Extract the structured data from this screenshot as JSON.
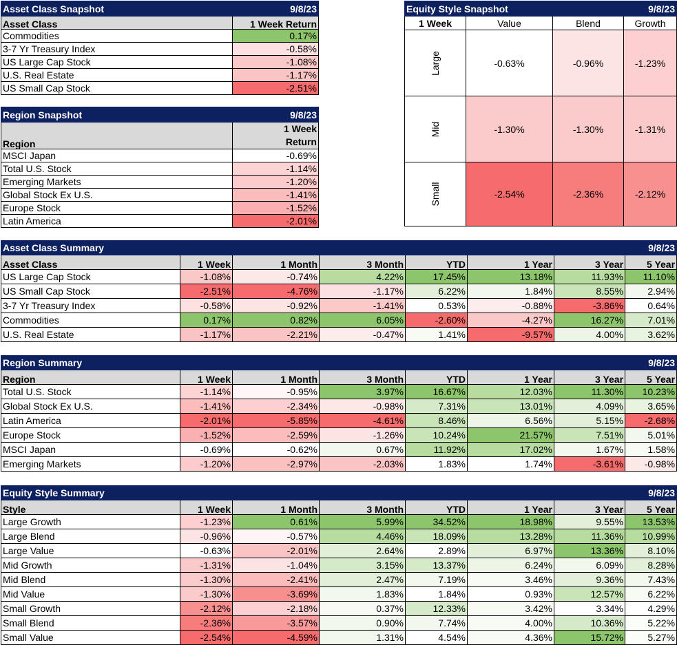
{
  "asset_snapshot": {
    "title": "Asset Class Snapshot",
    "date": "9/8/23",
    "col_label": "Asset Class",
    "col_value": "1 Week Return",
    "rows": [
      {
        "name": "Commodities",
        "value": "0.17%",
        "color": "#8cc56b"
      },
      {
        "name": "3-7 Yr Treasury Index",
        "value": "-0.58%",
        "color": "#fde0e0"
      },
      {
        "name": "US Large Cap Stock",
        "value": "-1.08%",
        "color": "#fbc8c8"
      },
      {
        "name": "U.S. Real Estate",
        "value": "-1.17%",
        "color": "#fbc4c4"
      },
      {
        "name": "US Small Cap Stock",
        "value": "-2.51%",
        "color": "#f66b6b"
      }
    ]
  },
  "region_snapshot": {
    "title": "Region Snapshot",
    "date": "9/8/23",
    "col_label": "Region",
    "col_value_1": "1 Week",
    "col_value_2": "Return",
    "rows": [
      {
        "name": "MSCI Japan",
        "value": "-0.69%",
        "color": "#ffffff"
      },
      {
        "name": "Total U.S. Stock",
        "value": "-1.14%",
        "color": "#fcd4d4"
      },
      {
        "name": "Emerging Markets",
        "value": "-1.20%",
        "color": "#fccccc"
      },
      {
        "name": "Global Stock Ex U.S.",
        "value": "-1.41%",
        "color": "#fbbcbc"
      },
      {
        "name": "Europe Stock",
        "value": "-1.52%",
        "color": "#fab0b0"
      },
      {
        "name": "Latin America",
        "value": "-2.01%",
        "color": "#f66b6b"
      }
    ]
  },
  "equity_snapshot": {
    "title": "Equity Style Snapshot",
    "date": "9/8/23",
    "corner": "1 Week",
    "columns": [
      "Value",
      "Blend",
      "Growth"
    ],
    "rows": [
      {
        "label": "Large",
        "cells": [
          {
            "v": "-0.63%",
            "c": "#ffffff"
          },
          {
            "v": "-0.96%",
            "c": "#fde4e4"
          },
          {
            "v": "-1.23%",
            "c": "#fcd0d0"
          }
        ]
      },
      {
        "label": "Mid",
        "cells": [
          {
            "v": "-1.30%",
            "c": "#fbcaca"
          },
          {
            "v": "-1.30%",
            "c": "#fbcaca"
          },
          {
            "v": "-1.31%",
            "c": "#fbc9c9"
          }
        ]
      },
      {
        "label": "Small",
        "cells": [
          {
            "v": "-2.54%",
            "c": "#f66b6b"
          },
          {
            "v": "-2.36%",
            "c": "#f77d7d"
          },
          {
            "v": "-2.12%",
            "c": "#f89090"
          }
        ]
      }
    ]
  },
  "asset_summary": {
    "title": "Asset Class Summary",
    "date": "9/8/23",
    "columns": [
      "Asset Class",
      "1 Week",
      "1 Month",
      "3 Month",
      "YTD",
      "1 Year",
      "3 Year",
      "5 Year"
    ],
    "rows": [
      {
        "name": "US Large Cap Stock",
        "cells": [
          {
            "v": "-1.08%",
            "c": "#fbc8c8"
          },
          {
            "v": "-0.74%",
            "c": "#fde8e8"
          },
          {
            "v": "4.22%",
            "c": "#b6dca0"
          },
          {
            "v": "17.45%",
            "c": "#8cc56b"
          },
          {
            "v": "13.18%",
            "c": "#8cc56b"
          },
          {
            "v": "11.93%",
            "c": "#b6dca0"
          },
          {
            "v": "11.10%",
            "c": "#8cc56b"
          }
        ]
      },
      {
        "name": "US Small Cap Stock",
        "cells": [
          {
            "v": "-2.51%",
            "c": "#f66b6b"
          },
          {
            "v": "-4.76%",
            "c": "#f66b6b"
          },
          {
            "v": "-1.17%",
            "c": "#fde0e0"
          },
          {
            "v": "6.22%",
            "c": "#e2f0d9"
          },
          {
            "v": "1.84%",
            "c": "#f2f8ee"
          },
          {
            "v": "8.55%",
            "c": "#c9e5b8"
          },
          {
            "v": "2.94%",
            "c": "#f2f8ee"
          }
        ]
      },
      {
        "name": "3-7 Yr Treasury Index",
        "cells": [
          {
            "v": "-0.58%",
            "c": "#fde0e0"
          },
          {
            "v": "-0.92%",
            "c": "#fde4e4"
          },
          {
            "v": "-1.41%",
            "c": "#fcc8c8"
          },
          {
            "v": "0.53%",
            "c": "#ffffff"
          },
          {
            "v": "-0.88%",
            "c": "#fdecec"
          },
          {
            "v": "-3.86%",
            "c": "#f66b6b"
          },
          {
            "v": "0.64%",
            "c": "#ffffff"
          }
        ]
      },
      {
        "name": "Commodities",
        "cells": [
          {
            "v": "0.17%",
            "c": "#8cc56b"
          },
          {
            "v": "0.82%",
            "c": "#8cc56b"
          },
          {
            "v": "6.05%",
            "c": "#8cc56b"
          },
          {
            "v": "-2.60%",
            "c": "#f66b6b"
          },
          {
            "v": "-4.27%",
            "c": "#fbc8c8"
          },
          {
            "v": "16.27%",
            "c": "#8cc56b"
          },
          {
            "v": "7.01%",
            "c": "#d5eac8"
          }
        ]
      },
      {
        "name": "U.S. Real Estate",
        "cells": [
          {
            "v": "-1.17%",
            "c": "#fbc4c4"
          },
          {
            "v": "-2.21%",
            "c": "#fbc4c4"
          },
          {
            "v": "-0.47%",
            "c": "#fdecec"
          },
          {
            "v": "1.41%",
            "c": "#f7fbf4"
          },
          {
            "v": "-9.57%",
            "c": "#f66b6b"
          },
          {
            "v": "4.00%",
            "c": "#edf5e6"
          },
          {
            "v": "3.62%",
            "c": "#e8f3e0"
          }
        ]
      }
    ]
  },
  "region_summary": {
    "title": "Region Summary",
    "date": "9/8/23",
    "columns": [
      "Region",
      "1 Week",
      "1 Month",
      "3 Month",
      "YTD",
      "1 Year",
      "3 Year",
      "5 Year"
    ],
    "rows": [
      {
        "name": "Total U.S. Stock",
        "cells": [
          {
            "v": "-1.14%",
            "c": "#fcd4d4"
          },
          {
            "v": "-0.95%",
            "c": "#fef6f6"
          },
          {
            "v": "3.97%",
            "c": "#8cc56b"
          },
          {
            "v": "16.67%",
            "c": "#8cc56b"
          },
          {
            "v": "12.03%",
            "c": "#b6dca0"
          },
          {
            "v": "11.30%",
            "c": "#8cc56b"
          },
          {
            "v": "10.23%",
            "c": "#8cc56b"
          }
        ]
      },
      {
        "name": "Global Stock Ex U.S.",
        "cells": [
          {
            "v": "-1.41%",
            "c": "#fbbcbc"
          },
          {
            "v": "-2.34%",
            "c": "#fcd0d0"
          },
          {
            "v": "-0.98%",
            "c": "#fde8e8"
          },
          {
            "v": "7.31%",
            "c": "#d5eac8"
          },
          {
            "v": "13.01%",
            "c": "#c9e5b8"
          },
          {
            "v": "4.09%",
            "c": "#e2f0d9"
          },
          {
            "v": "3.65%",
            "c": "#e8f3e0"
          }
        ]
      },
      {
        "name": "Latin America",
        "cells": [
          {
            "v": "-2.01%",
            "c": "#f66b6b"
          },
          {
            "v": "-5.85%",
            "c": "#f66b6b"
          },
          {
            "v": "-4.61%",
            "c": "#f66b6b"
          },
          {
            "v": "8.46%",
            "c": "#c9e5b8"
          },
          {
            "v": "6.56%",
            "c": "#edf5e6"
          },
          {
            "v": "5.15%",
            "c": "#e2f0d9"
          },
          {
            "v": "-2.68%",
            "c": "#f66b6b"
          }
        ]
      },
      {
        "name": "Europe Stock",
        "cells": [
          {
            "v": "-1.52%",
            "c": "#fab0b0"
          },
          {
            "v": "-2.59%",
            "c": "#fbbcbc"
          },
          {
            "v": "-1.26%",
            "c": "#fde4e4"
          },
          {
            "v": "10.24%",
            "c": "#c9e5b8"
          },
          {
            "v": "21.57%",
            "c": "#8cc56b"
          },
          {
            "v": "7.51%",
            "c": "#c9e5b8"
          },
          {
            "v": "5.01%",
            "c": "#f2f8ee"
          }
        ]
      },
      {
        "name": "MSCI Japan",
        "cells": [
          {
            "v": "-0.69%",
            "c": "#ffffff"
          },
          {
            "v": "-0.62%",
            "c": "#ffffff"
          },
          {
            "v": "0.67%",
            "c": "#f2f8ee"
          },
          {
            "v": "11.92%",
            "c": "#b6dca0"
          },
          {
            "v": "17.02%",
            "c": "#b6dca0"
          },
          {
            "v": "1.67%",
            "c": "#f2f8ee"
          },
          {
            "v": "1.58%",
            "c": "#f7fbf4"
          }
        ]
      },
      {
        "name": "Emerging Markets",
        "cells": [
          {
            "v": "-1.20%",
            "c": "#fccccc"
          },
          {
            "v": "-2.97%",
            "c": "#fbc0c0"
          },
          {
            "v": "-2.03%",
            "c": "#fbc4c4"
          },
          {
            "v": "1.83%",
            "c": "#ffffff"
          },
          {
            "v": "1.74%",
            "c": "#ffffff"
          },
          {
            "v": "-3.61%",
            "c": "#f66b6b"
          },
          {
            "v": "-0.98%",
            "c": "#fde8e8"
          }
        ]
      }
    ]
  },
  "equity_summary": {
    "title": "Equity Style Summary",
    "date": "9/8/23",
    "columns": [
      "Style",
      "1 Week",
      "1 Month",
      "3 Month",
      "YTD",
      "1 Year",
      "3 Year",
      "5 Year"
    ],
    "rows": [
      {
        "name": "Large Growth",
        "cells": [
          {
            "v": "-1.23%",
            "c": "#fcd0d0"
          },
          {
            "v": "0.61%",
            "c": "#8cc56b"
          },
          {
            "v": "5.99%",
            "c": "#8cc56b"
          },
          {
            "v": "34.52%",
            "c": "#8cc56b"
          },
          {
            "v": "18.98%",
            "c": "#8cc56b"
          },
          {
            "v": "9.55%",
            "c": "#e2f0d9"
          },
          {
            "v": "13.53%",
            "c": "#8cc56b"
          }
        ]
      },
      {
        "name": "Large Blend",
        "cells": [
          {
            "v": "-0.96%",
            "c": "#fde4e4"
          },
          {
            "v": "-0.57%",
            "c": "#fef6f6"
          },
          {
            "v": "4.46%",
            "c": "#b6dca0"
          },
          {
            "v": "18.09%",
            "c": "#c9e5b8"
          },
          {
            "v": "13.28%",
            "c": "#b6dca0"
          },
          {
            "v": "11.36%",
            "c": "#b6dca0"
          },
          {
            "v": "10.99%",
            "c": "#b6dca0"
          }
        ]
      },
      {
        "name": "Large Value",
        "cells": [
          {
            "v": "-0.63%",
            "c": "#ffffff"
          },
          {
            "v": "-2.01%",
            "c": "#fbc4c4"
          },
          {
            "v": "2.64%",
            "c": "#e2f0d9"
          },
          {
            "v": "2.89%",
            "c": "#ffffff"
          },
          {
            "v": "6.97%",
            "c": "#e2f0d9"
          },
          {
            "v": "13.36%",
            "c": "#8cc56b"
          },
          {
            "v": "8.10%",
            "c": "#e2f0d9"
          }
        ]
      },
      {
        "name": "Mid Growth",
        "cells": [
          {
            "v": "-1.31%",
            "c": "#fbc9c9"
          },
          {
            "v": "-1.04%",
            "c": "#fde4e4"
          },
          {
            "v": "3.15%",
            "c": "#d5eac8"
          },
          {
            "v": "13.37%",
            "c": "#d5eac8"
          },
          {
            "v": "6.24%",
            "c": "#edf5e6"
          },
          {
            "v": "6.09%",
            "c": "#f2f8ee"
          },
          {
            "v": "8.28%",
            "c": "#e2f0d9"
          }
        ]
      },
      {
        "name": "Mid Blend",
        "cells": [
          {
            "v": "-1.30%",
            "c": "#fbcaca"
          },
          {
            "v": "-2.41%",
            "c": "#fbbcbc"
          },
          {
            "v": "2.47%",
            "c": "#e2f0d9"
          },
          {
            "v": "7.19%",
            "c": "#f2f8ee"
          },
          {
            "v": "3.46%",
            "c": "#f7fbf4"
          },
          {
            "v": "9.36%",
            "c": "#e2f0d9"
          },
          {
            "v": "7.43%",
            "c": "#f2f8ee"
          }
        ]
      },
      {
        "name": "Mid Value",
        "cells": [
          {
            "v": "-1.30%",
            "c": "#fbcaca"
          },
          {
            "v": "-3.69%",
            "c": "#f88f8f"
          },
          {
            "v": "1.83%",
            "c": "#f2f8ee"
          },
          {
            "v": "1.84%",
            "c": "#ffffff"
          },
          {
            "v": "0.93%",
            "c": "#ffffff"
          },
          {
            "v": "12.57%",
            "c": "#c9e5b8"
          },
          {
            "v": "6.22%",
            "c": "#f7fbf4"
          }
        ]
      },
      {
        "name": "Small Growth",
        "cells": [
          {
            "v": "-2.12%",
            "c": "#f89090"
          },
          {
            "v": "-2.18%",
            "c": "#fcd0d0"
          },
          {
            "v": "0.37%",
            "c": "#f7fbf4"
          },
          {
            "v": "12.33%",
            "c": "#d5eac8"
          },
          {
            "v": "3.42%",
            "c": "#f7fbf4"
          },
          {
            "v": "3.34%",
            "c": "#ffffff"
          },
          {
            "v": "4.29%",
            "c": "#ffffff"
          }
        ]
      },
      {
        "name": "Small Blend",
        "cells": [
          {
            "v": "-2.36%",
            "c": "#f77d7d"
          },
          {
            "v": "-3.57%",
            "c": "#f89a9a"
          },
          {
            "v": "0.90%",
            "c": "#f2f8ee"
          },
          {
            "v": "7.74%",
            "c": "#f2f8ee"
          },
          {
            "v": "4.00%",
            "c": "#f7fbf4"
          },
          {
            "v": "10.36%",
            "c": "#d5eac8"
          },
          {
            "v": "5.22%",
            "c": "#fbfdf9"
          }
        ]
      },
      {
        "name": "Small Value",
        "cells": [
          {
            "v": "-2.54%",
            "c": "#f66b6b"
          },
          {
            "v": "-4.59%",
            "c": "#f66b6b"
          },
          {
            "v": "1.31%",
            "c": "#f2f8ee"
          },
          {
            "v": "4.54%",
            "c": "#ffffff"
          },
          {
            "v": "4.36%",
            "c": "#f7fbf4"
          },
          {
            "v": "15.72%",
            "c": "#8cc56b"
          },
          {
            "v": "5.27%",
            "c": "#fbfdf9"
          }
        ]
      }
    ]
  }
}
